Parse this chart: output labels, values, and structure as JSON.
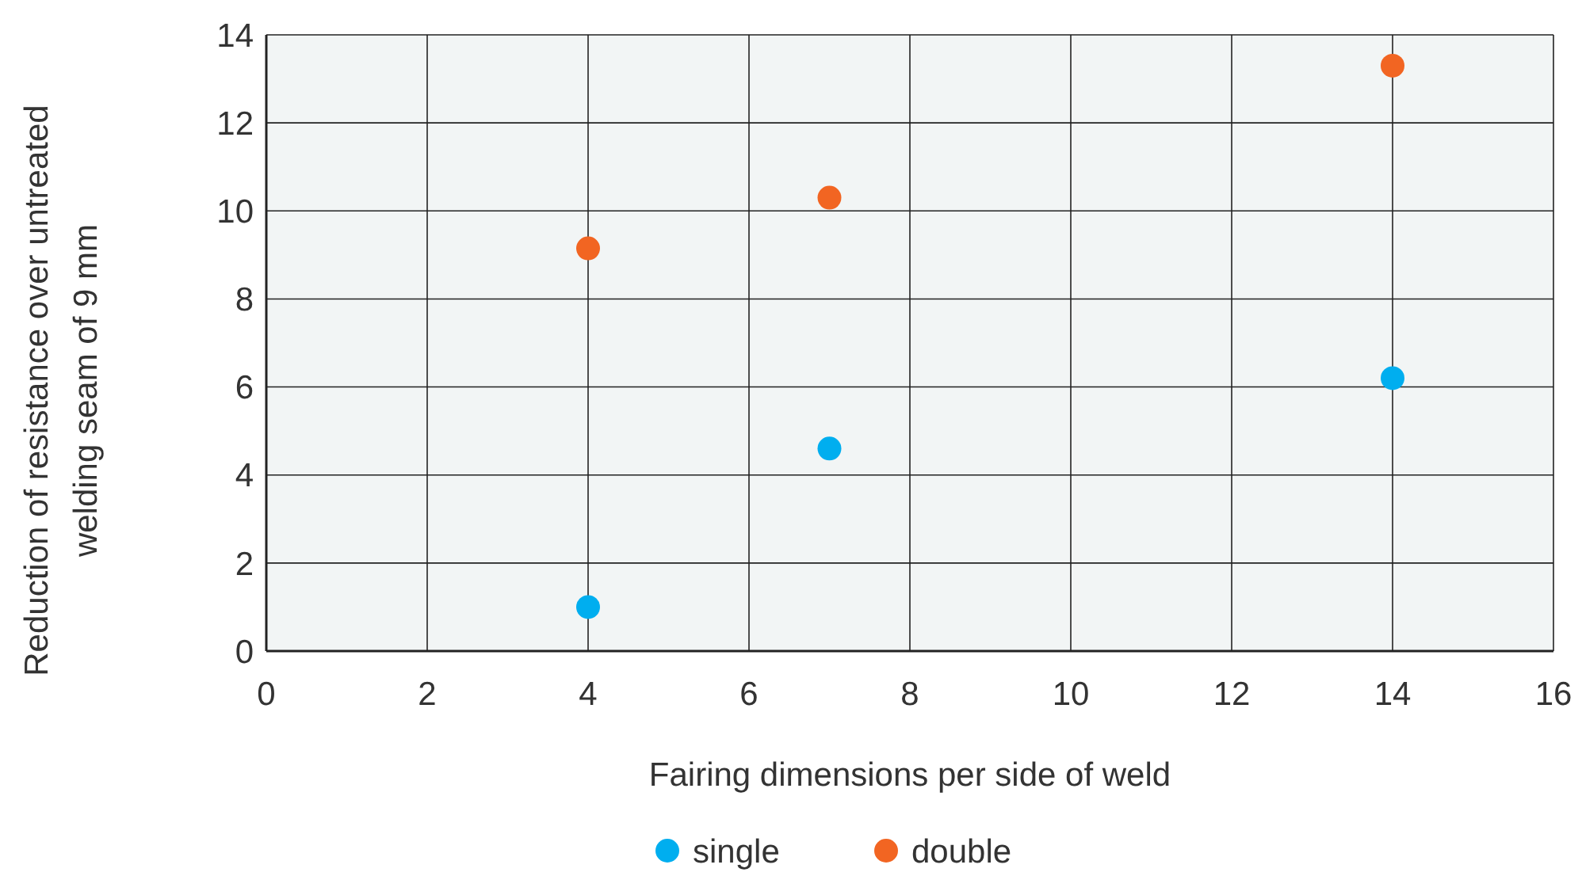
{
  "chart_data": {
    "type": "scatter",
    "xlabel": "Fairing dimensions per side of weld",
    "ylabel": "Reduction of resistance over untreated welding seam of 9 mm",
    "xlim": [
      0,
      16
    ],
    "xticks": [
      0,
      2,
      4,
      6,
      8,
      10,
      12,
      14,
      16
    ],
    "ylim": [
      0,
      14
    ],
    "yticks": [
      0,
      2,
      4,
      6,
      8,
      10,
      12,
      14
    ],
    "grid": true,
    "legend": "bottom",
    "marker": "circle",
    "series": [
      {
        "name": "single",
        "color": "#00aeef",
        "x": [
          4,
          7,
          14
        ],
        "values": [
          1.0,
          4.6,
          6.2
        ]
      },
      {
        "name": "double",
        "color": "#f26522",
        "x": [
          4,
          7,
          14
        ],
        "values": [
          9.15,
          10.3,
          13.3
        ]
      }
    ]
  }
}
